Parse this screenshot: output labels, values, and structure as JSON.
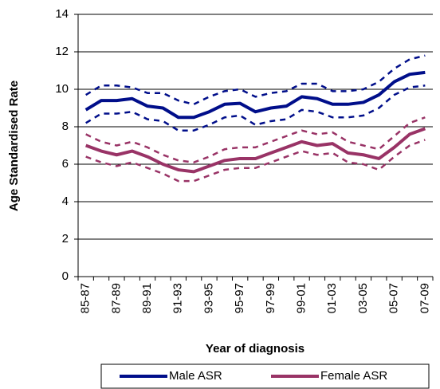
{
  "chart_data": {
    "type": "line",
    "xlabel": "Year of diagnosis",
    "ylabel": "Age Standardised Rate",
    "categories": [
      "85-87",
      null,
      "87-89",
      null,
      "89-91",
      null,
      "91-93",
      null,
      "93-95",
      null,
      "95-97",
      null,
      "97-99",
      null,
      "99-01",
      null,
      "01-03",
      null,
      "03-05",
      null,
      "05-07",
      null,
      "07-09"
    ],
    "ylim": [
      0,
      14
    ],
    "yticks": [
      0,
      2,
      4,
      6,
      8,
      10,
      12,
      14
    ],
    "grid": true,
    "legend": "bottom",
    "series": [
      {
        "name": "Male ASR",
        "color": "#000e8a",
        "values": [
          8.9,
          9.4,
          9.4,
          9.5,
          9.1,
          9.0,
          8.5,
          8.5,
          8.8,
          9.2,
          9.25,
          8.8,
          9.0,
          9.1,
          9.6,
          9.5,
          9.2,
          9.2,
          9.3,
          9.7,
          10.4,
          10.8,
          10.9
        ]
      },
      {
        "color": "#000e8a",
        "dashed": true,
        "values": [
          9.7,
          10.2,
          10.2,
          10.1,
          9.8,
          9.8,
          9.4,
          9.2,
          9.6,
          9.9,
          10.0,
          9.6,
          9.8,
          9.9,
          10.3,
          10.3,
          9.9,
          9.9,
          10.0,
          10.4,
          11.1,
          11.6,
          11.8
        ]
      },
      {
        "color": "#000e8a",
        "dashed": true,
        "values": [
          8.2,
          8.7,
          8.7,
          8.8,
          8.4,
          8.3,
          7.8,
          7.8,
          8.1,
          8.5,
          8.6,
          8.1,
          8.3,
          8.4,
          8.9,
          8.8,
          8.5,
          8.5,
          8.6,
          9.0,
          9.7,
          10.1,
          10.2
        ]
      },
      {
        "name": "Female ASR",
        "color": "#993366",
        "values": [
          7.0,
          6.7,
          6.5,
          6.7,
          6.4,
          6.0,
          5.7,
          5.6,
          5.9,
          6.2,
          6.3,
          6.3,
          6.6,
          6.9,
          7.2,
          7.0,
          7.1,
          6.6,
          6.5,
          6.3,
          6.9,
          7.6,
          7.9
        ]
      },
      {
        "color": "#993366",
        "dashed": true,
        "values": [
          7.6,
          7.2,
          7.0,
          7.2,
          6.9,
          6.5,
          6.2,
          6.1,
          6.4,
          6.8,
          6.9,
          6.9,
          7.2,
          7.5,
          7.8,
          7.6,
          7.7,
          7.2,
          7.0,
          6.8,
          7.5,
          8.2,
          8.5
        ]
      },
      {
        "color": "#993366",
        "dashed": true,
        "values": [
          6.4,
          6.1,
          5.9,
          6.1,
          5.8,
          5.5,
          5.1,
          5.1,
          5.4,
          5.7,
          5.8,
          5.8,
          6.1,
          6.4,
          6.7,
          6.5,
          6.6,
          6.1,
          6.0,
          5.7,
          6.4,
          7.0,
          7.3
        ]
      }
    ]
  }
}
